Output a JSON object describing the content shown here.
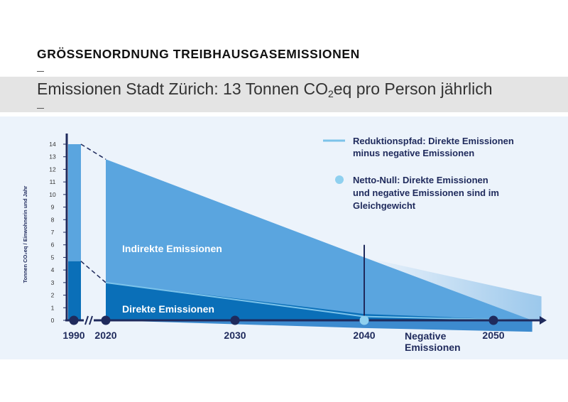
{
  "page": {
    "heading": "GRÖSSENORDNUNG TREIBHAUSGASEMISSIONEN",
    "subtitle_pre": "Emissionen Stadt Zürich: 13 Tonnen CO",
    "subtitle_sub": "2",
    "subtitle_post": "eq pro Person jährlich"
  },
  "chart_data": {
    "type": "area",
    "ylabel": "Tonnen CO₂eq / Einwohnerin und Jahr",
    "ylim": [
      0,
      14
    ],
    "y_ticks": [
      0,
      1,
      2,
      3,
      4,
      5,
      6,
      7,
      8,
      9,
      10,
      11,
      12,
      13,
      14
    ],
    "x_ticks": [
      "1990",
      "2020",
      "2030",
      "2040",
      "2050"
    ],
    "series": [
      {
        "name": "Indirekte Emissionen",
        "label": "Indirekte Emissionen",
        "points": [
          [
            1990,
            14.0
          ],
          [
            2020,
            12.8
          ],
          [
            2040,
            5.0
          ],
          [
            2053,
            0.0
          ]
        ]
      },
      {
        "name": "Direkte Emissionen",
        "label": "Direkte Emissionen",
        "points": [
          [
            1990,
            4.7
          ],
          [
            2020,
            3.0
          ],
          [
            2040,
            0.5
          ],
          [
            2053,
            0.0
          ]
        ]
      },
      {
        "name": "Negative Emissionen",
        "label": "Negative\nEmissionen",
        "points": [
          [
            2020,
            0.0
          ],
          [
            2040,
            -0.5
          ],
          [
            2053,
            -0.8
          ]
        ]
      }
    ],
    "reduction_path": {
      "points": [
        [
          2020,
          3.0
        ],
        [
          2040,
          0.3
        ],
        [
          2053,
          0.0
        ]
      ]
    },
    "net_zero": {
      "year": 2040,
      "value": 0
    },
    "markers": [
      1990,
      2020,
      2030,
      2040,
      2050
    ],
    "legend": [
      {
        "kind": "line",
        "line1": "Reduktionspfad: Direkte Emissionen",
        "line2": "minus negative Emissionen"
      },
      {
        "kind": "dot",
        "line1": "Netto-Null: Direkte Emissionen",
        "line2": "und negative Emissionen sind im",
        "line3": "Gleichgewicht"
      }
    ],
    "colors": {
      "indirect": "#5aa5df",
      "direct": "#0a6fb8",
      "axis": "#1f2a5c",
      "path": "#7cc3ea",
      "netzero": "#8fd0ef"
    }
  }
}
